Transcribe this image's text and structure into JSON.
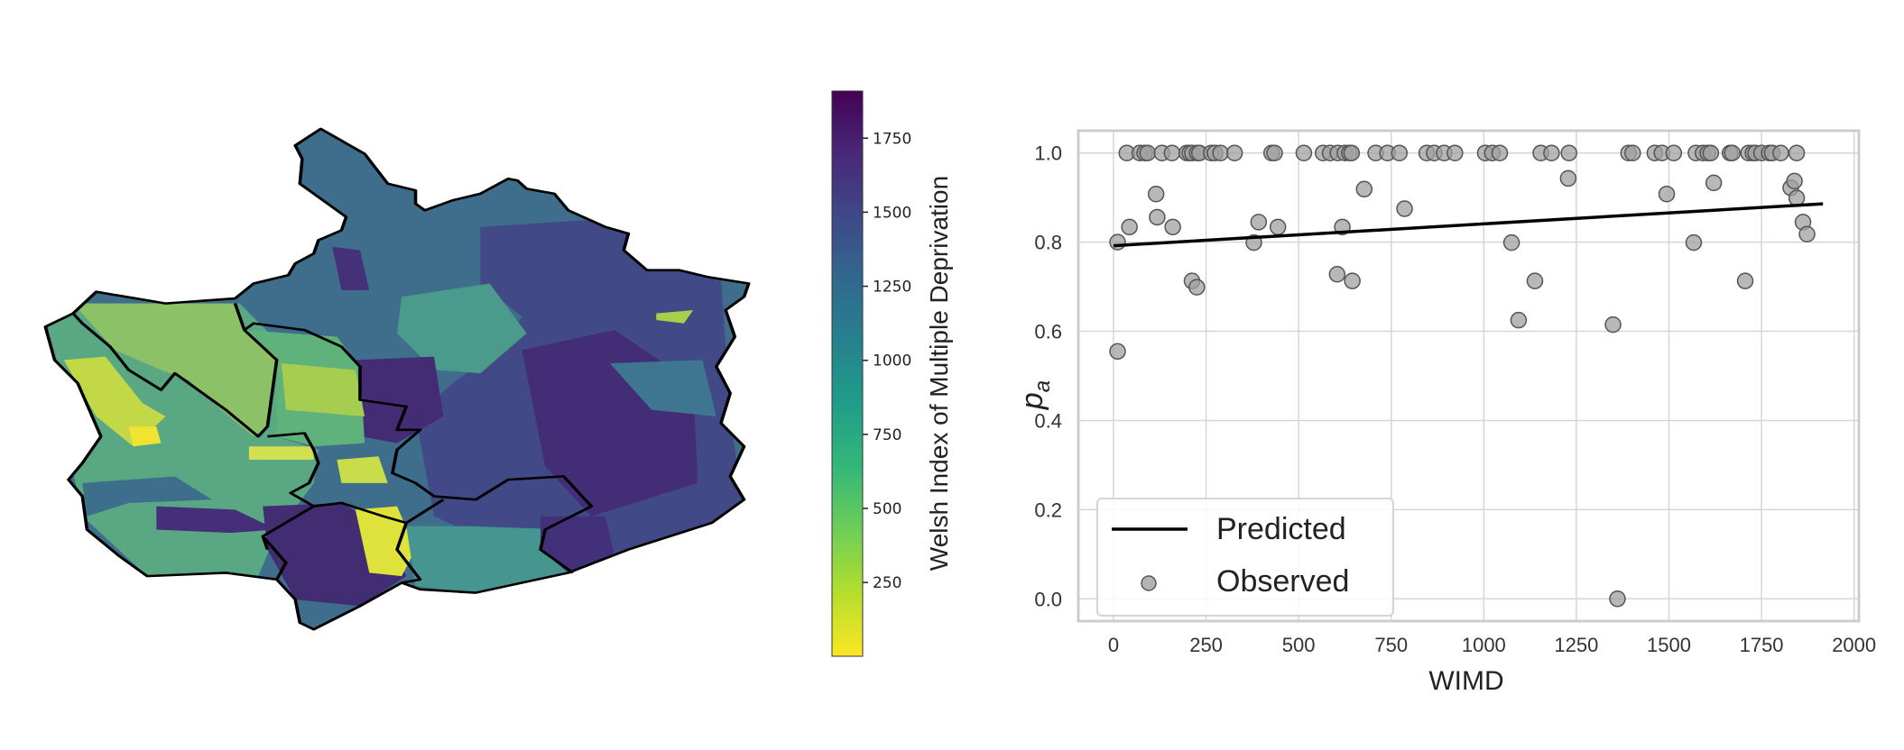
{
  "colorbar": {
    "label": "Welsh Index of Multiple Deprivation",
    "ticks": [
      250,
      500,
      750,
      1000,
      1250,
      1500,
      1750
    ],
    "range": [
      1,
      1909
    ],
    "colormap": [
      "#fde725",
      "#b5de2b",
      "#6ece58",
      "#35b779",
      "#1f9e89",
      "#26828e",
      "#31688e",
      "#3e4989",
      "#482878",
      "#440154"
    ]
  },
  "chart_data": {
    "type": "scatter",
    "xlabel": "WIMD",
    "ylabel": "p_a",
    "ylabel_main": "p",
    "ylabel_sub": "a",
    "xlim": [
      -95,
      2013
    ],
    "ylim": [
      -0.05,
      1.05
    ],
    "xticks": [
      0,
      250,
      500,
      750,
      1000,
      1250,
      1500,
      1750,
      2000
    ],
    "yticks": [
      "0.0",
      "0.2",
      "0.4",
      "0.6",
      "0.8",
      "1.0"
    ],
    "grid": true,
    "legend": {
      "position": "lower-left",
      "entries": [
        "Predicted",
        "Observed"
      ]
    },
    "series": [
      {
        "name": "Predicted",
        "type": "line",
        "color": "#000000",
        "x": [
          0,
          1916
        ],
        "y": [
          0.792,
          0.886
        ]
      },
      {
        "name": "Observed",
        "type": "scatter",
        "color": "#a0a0a0",
        "x": [
          36,
          71,
          84,
          92,
          131,
          158,
          198,
          206,
          213,
          226,
          232,
          264,
          274,
          289,
          327,
          427,
          435,
          514,
          566,
          585,
          606,
          625,
          637,
          643,
          708,
          740,
          772,
          846,
          866,
          893,
          922,
          1004,
          1023,
          1043,
          1154,
          1183,
          1230,
          1391,
          1402,
          1462,
          1481,
          1513,
          1573,
          1592,
          1605,
          1613,
          1665,
          1671,
          1715,
          1727,
          1734,
          1750,
          1771,
          1779,
          1802,
          1845,
          11,
          11,
          43,
          115,
          118,
          160,
          212,
          225,
          379,
          392,
          444,
          604,
          618,
          645,
          677,
          786,
          1075,
          1094,
          1138,
          1228,
          1349,
          1361,
          1494,
          1567,
          1621,
          1706,
          1829,
          1839,
          1845,
          1862,
          1873
        ],
        "y": [
          1,
          1,
          1,
          1,
          1,
          1,
          1,
          1,
          1,
          1,
          1,
          1,
          1,
          1,
          1,
          1,
          1,
          1,
          1,
          1,
          1,
          1,
          1,
          1,
          1,
          1,
          1,
          1,
          1,
          1,
          1,
          1,
          1,
          1,
          1,
          1,
          1,
          1,
          1,
          1,
          1,
          1,
          1,
          1,
          1,
          1,
          1,
          1,
          1,
          1,
          1,
          1,
          1,
          1,
          1,
          1,
          0.8,
          0.555,
          0.834,
          0.908,
          0.856,
          0.834,
          0.713,
          0.699,
          0.799,
          0.845,
          0.834,
          0.728,
          0.834,
          0.713,
          0.919,
          0.875,
          0.799,
          0.625,
          0.713,
          0.943,
          0.615,
          0.0,
          0.908,
          0.799,
          0.933,
          0.713,
          0.922,
          0.937,
          0.899,
          0.845,
          0.818
        ]
      }
    ]
  }
}
